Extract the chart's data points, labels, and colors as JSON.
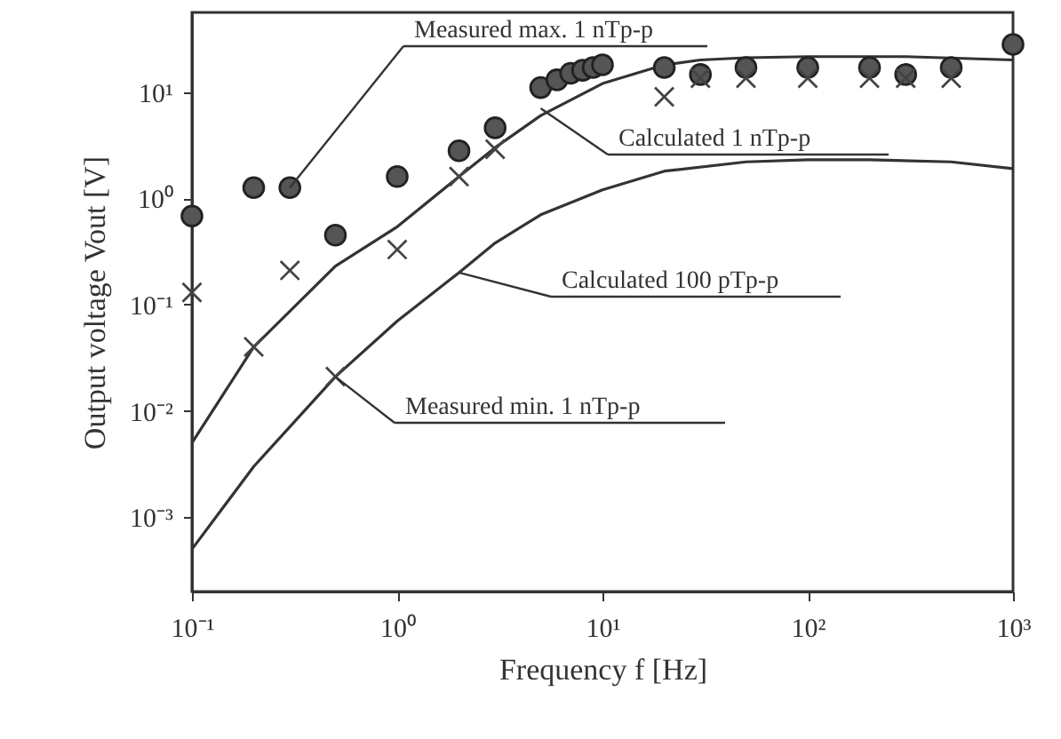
{
  "chart_data": {
    "type": "scatter",
    "xlabel": "Frequency f [Hz]",
    "ylabel": "Output voltage Vout [V]",
    "log": "xy",
    "grid": false,
    "xlim": [
      0.1,
      1000
    ],
    "ylim": [
      0.0002,
      56
    ],
    "xticks": [
      {
        "value": 0.1,
        "label": "10⁻¹"
      },
      {
        "value": 1,
        "label": "10⁰"
      },
      {
        "value": 10,
        "label": "10¹"
      },
      {
        "value": 100,
        "label": "10²"
      },
      {
        "value": 1000,
        "label": "10³"
      }
    ],
    "yticks": [
      {
        "value": 0.001,
        "label": "10⁻³"
      },
      {
        "value": 0.01,
        "label": "10⁻²"
      },
      {
        "value": 0.1,
        "label": "10⁻¹"
      },
      {
        "value": 1,
        "label": "10⁰"
      },
      {
        "value": 10,
        "label": "10¹"
      }
    ],
    "series": [
      {
        "type": "line",
        "color": "#333333",
        "line_style": "solid",
        "marker": "none",
        "x": [
          0.1,
          0.2,
          0.5,
          1,
          2,
          3,
          5,
          10,
          20,
          30,
          50,
          100,
          300,
          1000
        ],
        "values": [
          0.005,
          0.04,
          0.23,
          0.54,
          1.6,
          3,
          6,
          12,
          18,
          20,
          21,
          21.5,
          21.5,
          20
        ]
      },
      {
        "type": "line",
        "color": "#333333",
        "line_style": "solid",
        "marker": "none",
        "x": [
          0.1,
          0.2,
          0.5,
          1,
          2,
          3,
          5,
          10,
          20,
          50,
          100,
          200,
          500,
          1000
        ],
        "values": [
          0.0005,
          0.003,
          0.021,
          0.07,
          0.2,
          0.38,
          0.7,
          1.2,
          1.8,
          2.2,
          2.3,
          2.3,
          2.2,
          1.9
        ]
      },
      {
        "color": "#555555",
        "marker": "circle",
        "x": [
          0.1,
          0.2,
          0.3,
          0.5,
          1,
          2,
          3,
          5,
          6,
          7,
          8,
          9,
          10,
          20,
          30,
          50,
          100,
          200,
          300,
          500,
          1000
        ],
        "values": [
          0.68,
          1.26,
          1.26,
          0.45,
          1.6,
          2.8,
          4.6,
          11,
          13,
          15,
          16,
          17,
          18,
          17,
          14.6,
          17,
          17,
          17,
          14.6,
          17,
          28
        ]
      },
      {
        "color": "#444444",
        "marker": "cross",
        "x": [
          0.1,
          0.2,
          0.3,
          0.5,
          1,
          2,
          3,
          20,
          30,
          50,
          100,
          200,
          300,
          500
        ],
        "values": [
          0.13,
          0.04,
          0.21,
          0.021,
          0.33,
          1.6,
          2.9,
          9,
          13.5,
          13.5,
          13.5,
          13.5,
          13.5,
          13.5
        ]
      }
    ],
    "annotations": [
      {
        "text": "Measured max. 1 nTp-p",
        "x": 0.3,
        "y": 1.26
      },
      {
        "text": "Calculated 1 nTp-p",
        "x": 5,
        "y": 7
      },
      {
        "text": "Calculated 100 pTp-p",
        "x": 2,
        "y": 0.2
      },
      {
        "text": "Measured min. 1 nTp-p",
        "x": 0.5,
        "y": 0.021
      }
    ]
  }
}
